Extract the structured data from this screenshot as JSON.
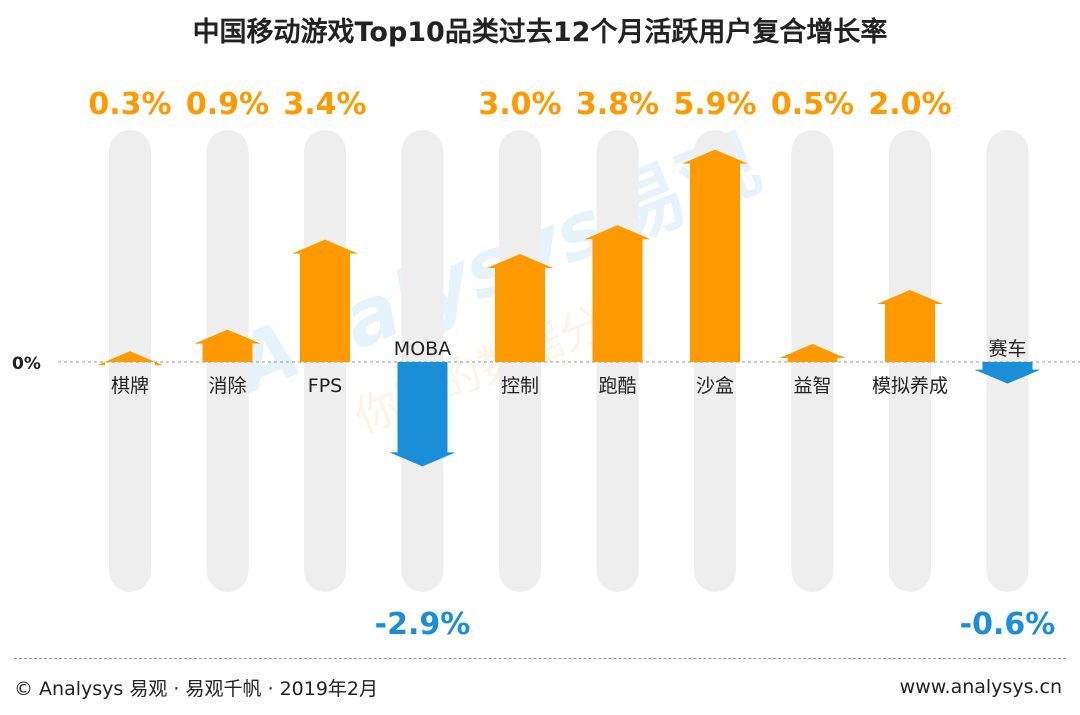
{
  "title": "中国移动游戏Top10品类过去12个月活跃用户复合增长率",
  "chart_data": {
    "type": "bar",
    "title": "中国移动游戏Top10品类过去12个月活跃用户复合增长率",
    "categories": [
      "棋牌",
      "消除",
      "FPS",
      "MOBA",
      "控制",
      "跑酷",
      "沙盒",
      "益智",
      "模拟养成",
      "赛车"
    ],
    "values": [
      0.3,
      0.9,
      3.4,
      -2.9,
      3.0,
      3.8,
      5.9,
      0.5,
      2.0,
      -0.6
    ],
    "value_labels": [
      "0.3%",
      "0.9%",
      "3.4%",
      "-2.9%",
      "3.0%",
      "3.8%",
      "5.9%",
      "0.5%",
      "2.0%",
      "-0.6%"
    ],
    "unit": "%",
    "zero_label": "0%",
    "ylim": [
      -3.5,
      6.5
    ],
    "colors": {
      "positive": "#ff9900",
      "negative": "#1a8fd8",
      "track": "#eeeeee",
      "zero_line": "#999999"
    }
  },
  "watermark": {
    "brand": "Analysys",
    "cn": "易观",
    "slogan": "你要的数据分析"
  },
  "footer": {
    "source": "© Analysys 易观 · 易观千帆 · 2019年2月",
    "url": "www.analysys.cn"
  }
}
